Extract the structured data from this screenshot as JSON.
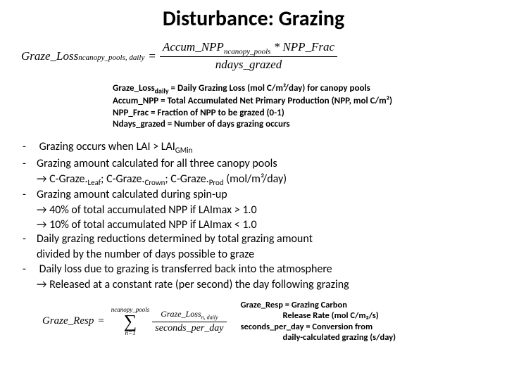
{
  "title": "Disturbance:  Grazing",
  "eq1": {
    "lhs_main": "Graze_Loss",
    "lhs_sub": "ncanopy_pools, daily",
    "num_left": "Accum_NPP",
    "num_left_sub": "ncanopy_pools",
    "num_op": " * ",
    "num_right": "NPP_Frac",
    "den": "ndays_grazed"
  },
  "defs": {
    "l1a": "Graze_Loss",
    "l1sub": "daily",
    "l1b": " = Daily Grazing Loss (mol C/m²/day) for canopy pools",
    "l2": "Accum_NPP = Total Accumulated Net Primary Production (NPP, mol C/m²)",
    "l3": "NPP_Frac = Fraction of NPP to be grazed (0-1)",
    "l4": "Ndays_grazed = Number of days grazing occurs"
  },
  "b": {
    "l1a": "Grazing occurs when LAI > LAI",
    "l1sub": "GMin",
    "l2": "Grazing amount calculated for all three canopy pools",
    "l2b_a": "→ C-Graze.",
    "l2b_s1": "Leaf",
    "l2b_b": "; C-Graze.",
    "l2b_s2": "Crown",
    "l2b_c": "; C-Graze.",
    "l2b_s3": "Prod",
    "l2b_d": "  (mol/m²/day)",
    "l3": "Grazing amount calculated during spin-up",
    "l3b": "→ 40% of total accumulated NPP if LAImax > 1.0",
    "l3c": "→ 10% of total accumulated NPP if LAImax < 1.0",
    "l4": "Daily grazing reductions determined by total grazing amount",
    "l4b": "divided by the number of days possible to graze",
    "l5": "Daily loss due to grazing is transferred back into the atmosphere",
    "l5b": "→ Released at a constant rate (per second) the day following grazing"
  },
  "eq2": {
    "lhs": "Graze_Resp",
    "sum_top": "ncanopy_pools",
    "sum_bot": "n=1",
    "num_main": "Graze_Loss",
    "num_sub": "n, daily",
    "den": "seconds_per_day"
  },
  "rdefs": {
    "l1": "Graze_Resp = Grazing Carbon",
    "l2": "Release Rate (mol C/m₂/s)",
    "l3": "seconds_per_day = Conversion from",
    "l4": "daily-calculated grazing (s/day)"
  }
}
